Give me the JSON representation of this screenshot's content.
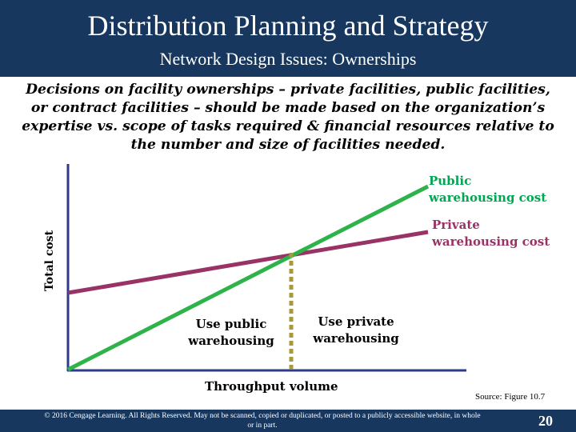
{
  "header": {
    "title": "Distribution Planning and Strategy",
    "subtitle": "Network Design Issues: Ownerships"
  },
  "description": {
    "lines": [
      "Decisions on facility ownerships – private facilities, public facilities,",
      "or contract facilities – should be made based on the organization’s",
      "expertise vs. scope of tasks required & financial resources relative to",
      "the number and size of facilities needed."
    ]
  },
  "diagram": {
    "y_axis_label": "Total cost",
    "x_axis_label": "Throughput volume",
    "public_line": {
      "label_line1": "Public",
      "label_line2": "warehousing cost",
      "color": "#2db34a"
    },
    "private_line": {
      "label_line1": "Private",
      "label_line2": "warehousing cost",
      "color": "#993366"
    },
    "region_left": {
      "line1": "Use public",
      "line2": "warehousing"
    },
    "region_right": {
      "line1": "Use private",
      "line2": "warehousing"
    },
    "axis_color": "#2e3a8c",
    "breakeven_color": "#a89a3a"
  },
  "source": "Source: Figure 10.7",
  "footer": {
    "copyright_line1": "© 2016 Cengage Learning. All Rights Reserved. May not be scanned, copied or duplicated, or posted to a publicly accessible website, in whole",
    "copyright_line2": "or in part.",
    "page_number": "20"
  }
}
